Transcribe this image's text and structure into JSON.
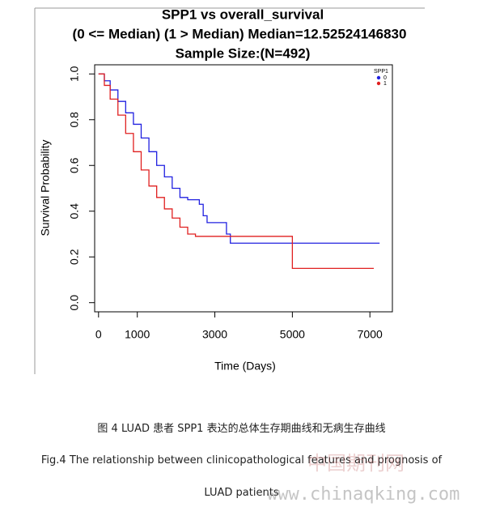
{
  "chart_data": {
    "type": "step",
    "title": [
      "SPP1 vs overall_survival",
      "(0 <= Median) (1 > Median) Median=12.52524146830",
      "Sample Size:(N=492)"
    ],
    "xlabel": "Time (Days)",
    "ylabel": "Survival Probability",
    "xlim": [
      -100,
      7580
    ],
    "ylim": [
      -0.04,
      1.04
    ],
    "xticks": [
      0,
      1000,
      3000,
      5000,
      7000
    ],
    "yticks": [
      {
        "value": 0,
        "label": "0.0"
      },
      0.2,
      0.4,
      0.6,
      0.8,
      {
        "value": 1,
        "label": "1.0"
      }
    ],
    "legend_title": "SPP1",
    "legend": "upper right",
    "series": [
      {
        "name": "0",
        "color": "#2020e0",
        "x": [
          0,
          150,
          300,
          500,
          700,
          900,
          1100,
          1300,
          1500,
          1700,
          1900,
          2100,
          2300,
          2600,
          2700,
          2800,
          3300,
          3400,
          5000,
          7250
        ],
        "values": [
          1.0,
          0.97,
          0.93,
          0.88,
          0.83,
          0.78,
          0.72,
          0.66,
          0.6,
          0.55,
          0.5,
          0.46,
          0.45,
          0.43,
          0.38,
          0.35,
          0.3,
          0.26,
          0.26,
          0.26
        ]
      },
      {
        "name": "1",
        "color": "#e02020",
        "x": [
          0,
          150,
          300,
          500,
          700,
          900,
          1100,
          1300,
          1500,
          1700,
          1900,
          2100,
          2300,
          2500,
          5000,
          7100
        ],
        "values": [
          1.0,
          0.95,
          0.89,
          0.82,
          0.74,
          0.66,
          0.58,
          0.51,
          0.46,
          0.41,
          0.37,
          0.33,
          0.3,
          0.29,
          0.15,
          0.15
        ]
      }
    ]
  },
  "caption": {
    "cn": "图 4 LUAD 患者 SPP1 表达的总体生存期曲线和无病生存曲线",
    "en": [
      "Fig.4 The relationship between clinicopathological features and prognosis of",
      "LUAD patients"
    ]
  },
  "watermark": [
    "中国期刊网",
    "www.chinaqking.com"
  ]
}
